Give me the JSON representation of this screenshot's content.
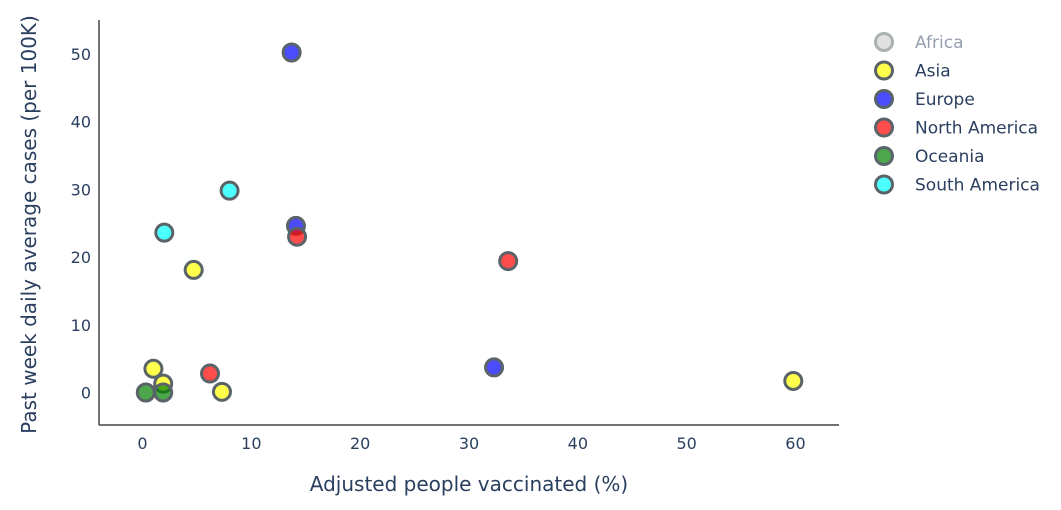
{
  "chart_data": {
    "type": "scatter",
    "xlabel": "Adjusted people vaccinated (%)",
    "ylabel": "Past week daily average cases (per 100K)",
    "xlim": [
      -4,
      64
    ],
    "ylim": [
      -4.8,
      55
    ],
    "xticks": [
      0,
      10,
      20,
      30,
      40,
      50,
      60
    ],
    "yticks": [
      0,
      10,
      20,
      30,
      40,
      50
    ],
    "grid": false,
    "legend_position": "top-right",
    "series": [
      {
        "name": "Africa",
        "color": "#a9a9a9",
        "hidden": true,
        "points": []
      },
      {
        "name": "Asia",
        "color": "#ffff00",
        "hidden": false,
        "points": [
          {
            "x": 1.0,
            "y": 3.5
          },
          {
            "x": 1.9,
            "y": 1.3
          },
          {
            "x": 4.7,
            "y": 18.1
          },
          {
            "x": 7.3,
            "y": 0.1
          },
          {
            "x": 59.8,
            "y": 1.7
          }
        ]
      },
      {
        "name": "Europe",
        "color": "#0000ff",
        "hidden": false,
        "points": [
          {
            "x": 13.7,
            "y": 50.2
          },
          {
            "x": 14.1,
            "y": 24.6
          },
          {
            "x": 32.3,
            "y": 3.7
          }
        ]
      },
      {
        "name": "North America",
        "color": "#ff0000",
        "hidden": false,
        "points": [
          {
            "x": 14.2,
            "y": 23.0
          },
          {
            "x": 6.2,
            "y": 2.8
          },
          {
            "x": 33.6,
            "y": 19.4
          }
        ]
      },
      {
        "name": "Oceania",
        "color": "#008000",
        "hidden": false,
        "points": [
          {
            "x": 0.3,
            "y": 0.0
          },
          {
            "x": 1.9,
            "y": 0.0
          }
        ]
      },
      {
        "name": "South America",
        "color": "#00ffff",
        "hidden": false,
        "points": [
          {
            "x": 8.0,
            "y": 29.8
          },
          {
            "x": 2.0,
            "y": 23.6
          }
        ]
      }
    ]
  }
}
